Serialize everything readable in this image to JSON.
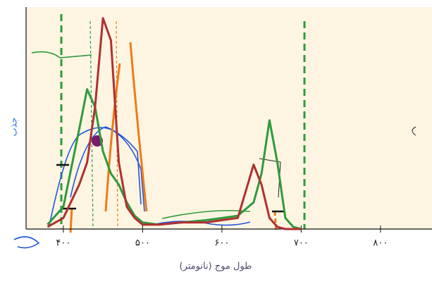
{
  "chart_data": {
    "type": "line",
    "x": [
      380,
      400,
      420,
      430,
      440,
      450,
      460,
      470,
      480,
      490,
      500,
      520,
      550,
      580,
      600,
      620,
      640,
      650,
      660,
      670,
      680,
      690,
      700
    ],
    "series": [
      {
        "color": "#2e9a3e",
        "values": [
          0.02,
          0.1,
          0.45,
          0.63,
          0.55,
          0.35,
          0.25,
          0.2,
          0.12,
          0.06,
          0.03,
          0.02,
          0.03,
          0.04,
          0.05,
          0.06,
          0.12,
          0.25,
          0.49,
          0.3,
          0.05,
          0.01,
          0
        ]
      },
      {
        "color": "#b03030",
        "values": [
          0.01,
          0.05,
          0.2,
          0.3,
          0.55,
          0.95,
          0.85,
          0.3,
          0.1,
          0.05,
          0.02,
          0.02,
          0.03,
          0.03,
          0.04,
          0.05,
          0.29,
          0.2,
          0.05,
          0.01,
          0,
          0,
          0
        ]
      }
    ],
    "xlim": [
      353,
      865
    ],
    "ylim": [
      0,
      1
    ],
    "xticks": [
      {
        "value": 400,
        "label": "۴۰۰"
      },
      {
        "value": 500,
        "label": "۵۰۰"
      },
      {
        "value": 600,
        "label": "۶۰۰"
      },
      {
        "value": 700,
        "label": "۷۰۰"
      },
      {
        "value": 800,
        "label": "۸۰۰"
      }
    ],
    "xlabel": "طول موج (نانومتر)",
    "ylabel": "جذب"
  }
}
